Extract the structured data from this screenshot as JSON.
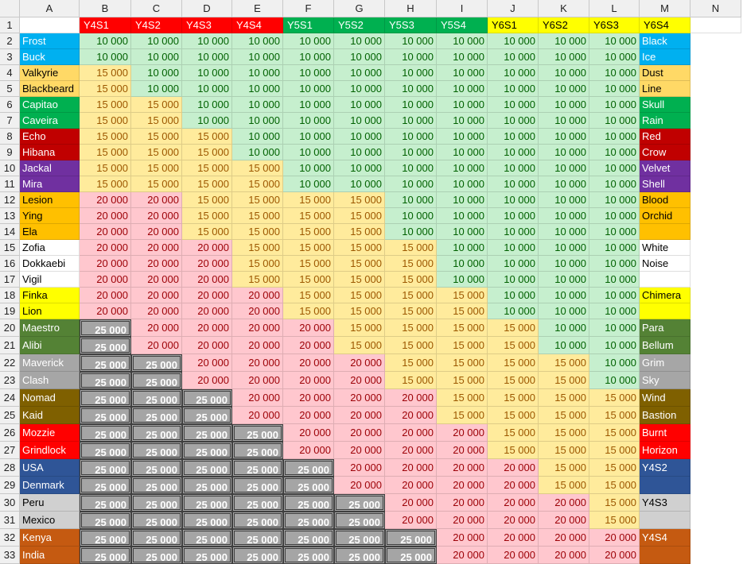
{
  "columns": [
    "A",
    "B",
    "C",
    "D",
    "E",
    "F",
    "G",
    "H",
    "I",
    "J",
    "K",
    "L",
    "M",
    "N"
  ],
  "header_row": [
    "",
    "Y4S1",
    "Y4S2",
    "Y4S3",
    "Y4S4",
    "Y5S1",
    "Y5S2",
    "Y5S3",
    "Y5S4",
    "Y6S1",
    "Y6S2",
    "Y6S3",
    "Y6S4",
    ""
  ],
  "season_colors": {
    "Y4": "#ff0000",
    "Y5": "#00b050",
    "Y6": "#ffff00"
  },
  "cat_colors": {
    "10": "#c6efce",
    "15": "#ffeb9c",
    "20": "#ffc7ce",
    "25": "#a5a5a5"
  },
  "rows": [
    {
      "num": "2",
      "a": "Frost",
      "n": "Black",
      "bg": "#00b0f0",
      "v": [
        10,
        10,
        10,
        10,
        10,
        10,
        10,
        10,
        10,
        10,
        10,
        10
      ]
    },
    {
      "num": "3",
      "a": "Buck",
      "n": "Ice",
      "bg": "#00b0f0",
      "v": [
        10,
        10,
        10,
        10,
        10,
        10,
        10,
        10,
        10,
        10,
        10,
        10
      ]
    },
    {
      "num": "4",
      "a": "Valkyrie",
      "n": "Dust",
      "bg": "#ffd966",
      "v": [
        15,
        10,
        10,
        10,
        10,
        10,
        10,
        10,
        10,
        10,
        10,
        10
      ]
    },
    {
      "num": "5",
      "a": "Blackbeard",
      "n": "Line",
      "bg": "#ffd966",
      "v": [
        15,
        10,
        10,
        10,
        10,
        10,
        10,
        10,
        10,
        10,
        10,
        10
      ]
    },
    {
      "num": "6",
      "a": "Capitao",
      "n": "Skull",
      "bg": "#00b050",
      "v": [
        15,
        15,
        10,
        10,
        10,
        10,
        10,
        10,
        10,
        10,
        10,
        10
      ]
    },
    {
      "num": "7",
      "a": "Caveira",
      "n": "Rain",
      "bg": "#00b050",
      "v": [
        15,
        15,
        10,
        10,
        10,
        10,
        10,
        10,
        10,
        10,
        10,
        10
      ]
    },
    {
      "num": "8",
      "a": "Echo",
      "n": "Red",
      "bg": "#c00000",
      "v": [
        15,
        15,
        15,
        10,
        10,
        10,
        10,
        10,
        10,
        10,
        10,
        10
      ]
    },
    {
      "num": "9",
      "a": "Hibana",
      "n": "Crow",
      "bg": "#c00000",
      "v": [
        15,
        15,
        15,
        10,
        10,
        10,
        10,
        10,
        10,
        10,
        10,
        10
      ]
    },
    {
      "num": "10",
      "a": "Jackal",
      "n": "Velvet",
      "bg": "#7030a0",
      "v": [
        15,
        15,
        15,
        15,
        10,
        10,
        10,
        10,
        10,
        10,
        10,
        10
      ]
    },
    {
      "num": "11",
      "a": "Mira",
      "n": "Shell",
      "bg": "#7030a0",
      "v": [
        15,
        15,
        15,
        15,
        10,
        10,
        10,
        10,
        10,
        10,
        10,
        10
      ]
    },
    {
      "num": "12",
      "a": "Lesion",
      "n": "Blood",
      "bg": "#ffc000",
      "v": [
        20,
        20,
        15,
        15,
        15,
        15,
        10,
        10,
        10,
        10,
        10,
        10
      ]
    },
    {
      "num": "13",
      "a": "Ying",
      "n": "Orchid",
      "bg": "#ffc000",
      "v": [
        20,
        20,
        15,
        15,
        15,
        15,
        10,
        10,
        10,
        10,
        10,
        10
      ]
    },
    {
      "num": "14",
      "a": "Ela",
      "n": "",
      "bg": "#ffc000",
      "v": [
        20,
        20,
        15,
        15,
        15,
        15,
        10,
        10,
        10,
        10,
        10,
        10
      ]
    },
    {
      "num": "15",
      "a": "Zofia",
      "n": "White",
      "bg": "#ffffff",
      "v": [
        20,
        20,
        20,
        15,
        15,
        15,
        15,
        10,
        10,
        10,
        10,
        10
      ]
    },
    {
      "num": "16",
      "a": "Dokkaebi",
      "n": "Noise",
      "bg": "#ffffff",
      "v": [
        20,
        20,
        20,
        15,
        15,
        15,
        15,
        10,
        10,
        10,
        10,
        10
      ]
    },
    {
      "num": "17",
      "a": "Vigil",
      "n": "",
      "bg": "#ffffff",
      "v": [
        20,
        20,
        20,
        15,
        15,
        15,
        15,
        10,
        10,
        10,
        10,
        10
      ]
    },
    {
      "num": "18",
      "a": "Finka",
      "n": "Chimera",
      "bg": "#ffff00",
      "v": [
        20,
        20,
        20,
        20,
        15,
        15,
        15,
        15,
        10,
        10,
        10,
        10
      ]
    },
    {
      "num": "19",
      "a": "Lion",
      "n": "",
      "bg": "#ffff00",
      "v": [
        20,
        20,
        20,
        20,
        15,
        15,
        15,
        15,
        10,
        10,
        10,
        10
      ]
    },
    {
      "num": "20",
      "a": "Maestro",
      "n": "Para",
      "bg": "#548235",
      "v": [
        25,
        20,
        20,
        20,
        20,
        15,
        15,
        15,
        15,
        10,
        10,
        10
      ]
    },
    {
      "num": "21",
      "a": "Alibi",
      "n": "Bellum",
      "bg": "#548235",
      "v": [
        25,
        20,
        20,
        20,
        20,
        15,
        15,
        15,
        15,
        10,
        10,
        10
      ]
    },
    {
      "num": "22",
      "a": "Maverick",
      "n": "Grim",
      "bg": "#a6a6a6",
      "v": [
        25,
        25,
        20,
        20,
        20,
        20,
        15,
        15,
        15,
        15,
        10,
        10
      ]
    },
    {
      "num": "23",
      "a": "Clash",
      "n": "Sky",
      "bg": "#a6a6a6",
      "v": [
        25,
        25,
        20,
        20,
        20,
        20,
        15,
        15,
        15,
        15,
        10,
        10
      ]
    },
    {
      "num": "24",
      "a": "Nomad",
      "n": "Wind",
      "bg": "#7f6000",
      "v": [
        25,
        25,
        25,
        20,
        20,
        20,
        20,
        15,
        15,
        15,
        15,
        10
      ]
    },
    {
      "num": "25",
      "a": "Kaid",
      "n": "Bastion",
      "bg": "#7f6000",
      "v": [
        25,
        25,
        25,
        20,
        20,
        20,
        20,
        15,
        15,
        15,
        15,
        10
      ]
    },
    {
      "num": "26",
      "a": "Mozzie",
      "n": "Burnt",
      "bg": "#ff0000",
      "v": [
        25,
        25,
        25,
        25,
        20,
        20,
        20,
        20,
        15,
        15,
        15,
        15
      ]
    },
    {
      "num": "27",
      "a": "Grindlock",
      "n": "Horizon",
      "bg": "#ff0000",
      "v": [
        25,
        25,
        25,
        25,
        20,
        20,
        20,
        20,
        15,
        15,
        15,
        15
      ]
    },
    {
      "num": "28",
      "a": "USA",
      "n": "Y4S2",
      "bg": "#2f5597",
      "v": [
        25,
        25,
        25,
        25,
        25,
        20,
        20,
        20,
        20,
        15,
        15,
        15
      ]
    },
    {
      "num": "29",
      "a": "Denmark",
      "n": "",
      "bg": "#2f5597",
      "v": [
        25,
        25,
        25,
        25,
        25,
        20,
        20,
        20,
        20,
        15,
        15,
        15
      ]
    },
    {
      "num": "30",
      "a": "Peru",
      "n": "Y4S3",
      "bg": "#d0d0d0",
      "v": [
        25,
        25,
        25,
        25,
        25,
        25,
        20,
        20,
        20,
        20,
        15,
        15
      ]
    },
    {
      "num": "31",
      "a": "Mexico",
      "n": "",
      "bg": "#d0d0d0",
      "v": [
        25,
        25,
        25,
        25,
        25,
        25,
        20,
        20,
        20,
        20,
        15,
        15
      ]
    },
    {
      "num": "32",
      "a": "Kenya",
      "n": "Y4S4",
      "bg": "#c55a11",
      "v": [
        25,
        25,
        25,
        25,
        25,
        25,
        25,
        20,
        20,
        20,
        20,
        15
      ]
    },
    {
      "num": "33",
      "a": "India",
      "n": "",
      "bg": "#c55a11",
      "v": [
        25,
        25,
        25,
        25,
        25,
        25,
        25,
        20,
        20,
        20,
        20,
        15
      ]
    }
  ],
  "value_labels": {
    "10": "10 000",
    "15": "15 000",
    "20": "20 000",
    "25": "25 000"
  }
}
